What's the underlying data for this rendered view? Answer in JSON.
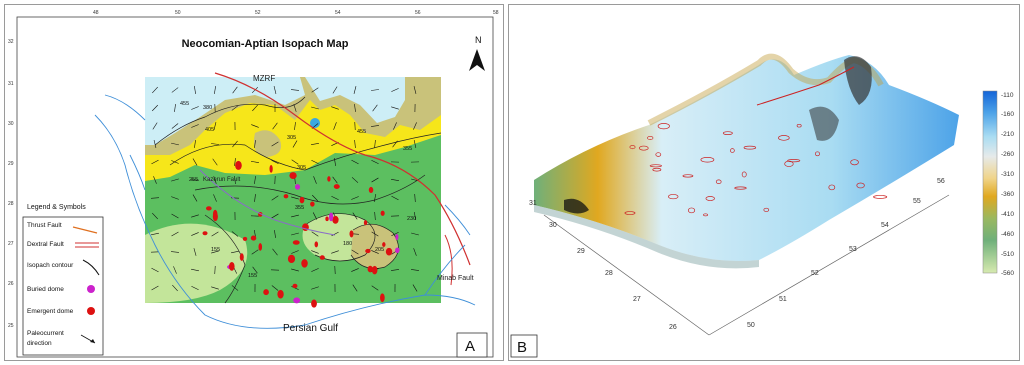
{
  "panel_a": {
    "title": "Neocomian-Aptian Isopach Map",
    "north": "N",
    "letter": "A",
    "top_ticks": [
      "48",
      "50",
      "52",
      "54",
      "56",
      "58"
    ],
    "left_ticks": [
      "32",
      "31",
      "30",
      "29",
      "28",
      "27",
      "26",
      "25"
    ],
    "labels": {
      "mzrf": "MZRF",
      "kazerun": "Kazerun Fault",
      "minab": "Minab Fault",
      "gulf": "Persian Gulf"
    },
    "contours": [
      "455",
      "380",
      "405",
      "305",
      "255",
      "230",
      "355",
      "305",
      "155",
      "155",
      "180",
      "205",
      "455",
      "355"
    ],
    "legend": {
      "title": "Legend & Symbols",
      "items": [
        {
          "label": "Thrust Fault",
          "color": "#e07020"
        },
        {
          "label": "Dextral Fault",
          "color": "#d03030"
        },
        {
          "label": "Isopach contour",
          "color": "#111111"
        },
        {
          "label": "Buried dome",
          "color": "#cc22cc"
        },
        {
          "label": "Emergent dome",
          "color": "#dd1111"
        },
        {
          "label": "Paleocurrent",
          "color": "#111111"
        },
        {
          "label": "direction",
          "color": "#111111"
        }
      ]
    },
    "colors": {
      "cyan": "#cdeef6",
      "khaki": "#c9c27a",
      "yellow": "#f6e61a",
      "green": "#5cbf60",
      "lightgreen": "#c3e59a",
      "river": "#3f8fd8"
    }
  },
  "panel_b": {
    "letter": "B",
    "colorbar": [
      "-110",
      "-160",
      "-210",
      "-260",
      "-310",
      "-360",
      "-410",
      "-460",
      "-510",
      "-560"
    ],
    "colorbar_colors": [
      "#1565d8",
      "#4da3e8",
      "#a9dcf2",
      "#e6eaea",
      "#f0d48a",
      "#e0a820",
      "#9ab860",
      "#6fb07a",
      "#b5d88a",
      "#d7eab0"
    ],
    "axis_lat": [
      "31",
      "30",
      "29",
      "28",
      "27",
      "26"
    ],
    "axis_lon": [
      "50",
      "51",
      "52",
      "53",
      "54",
      "55",
      "56"
    ]
  }
}
